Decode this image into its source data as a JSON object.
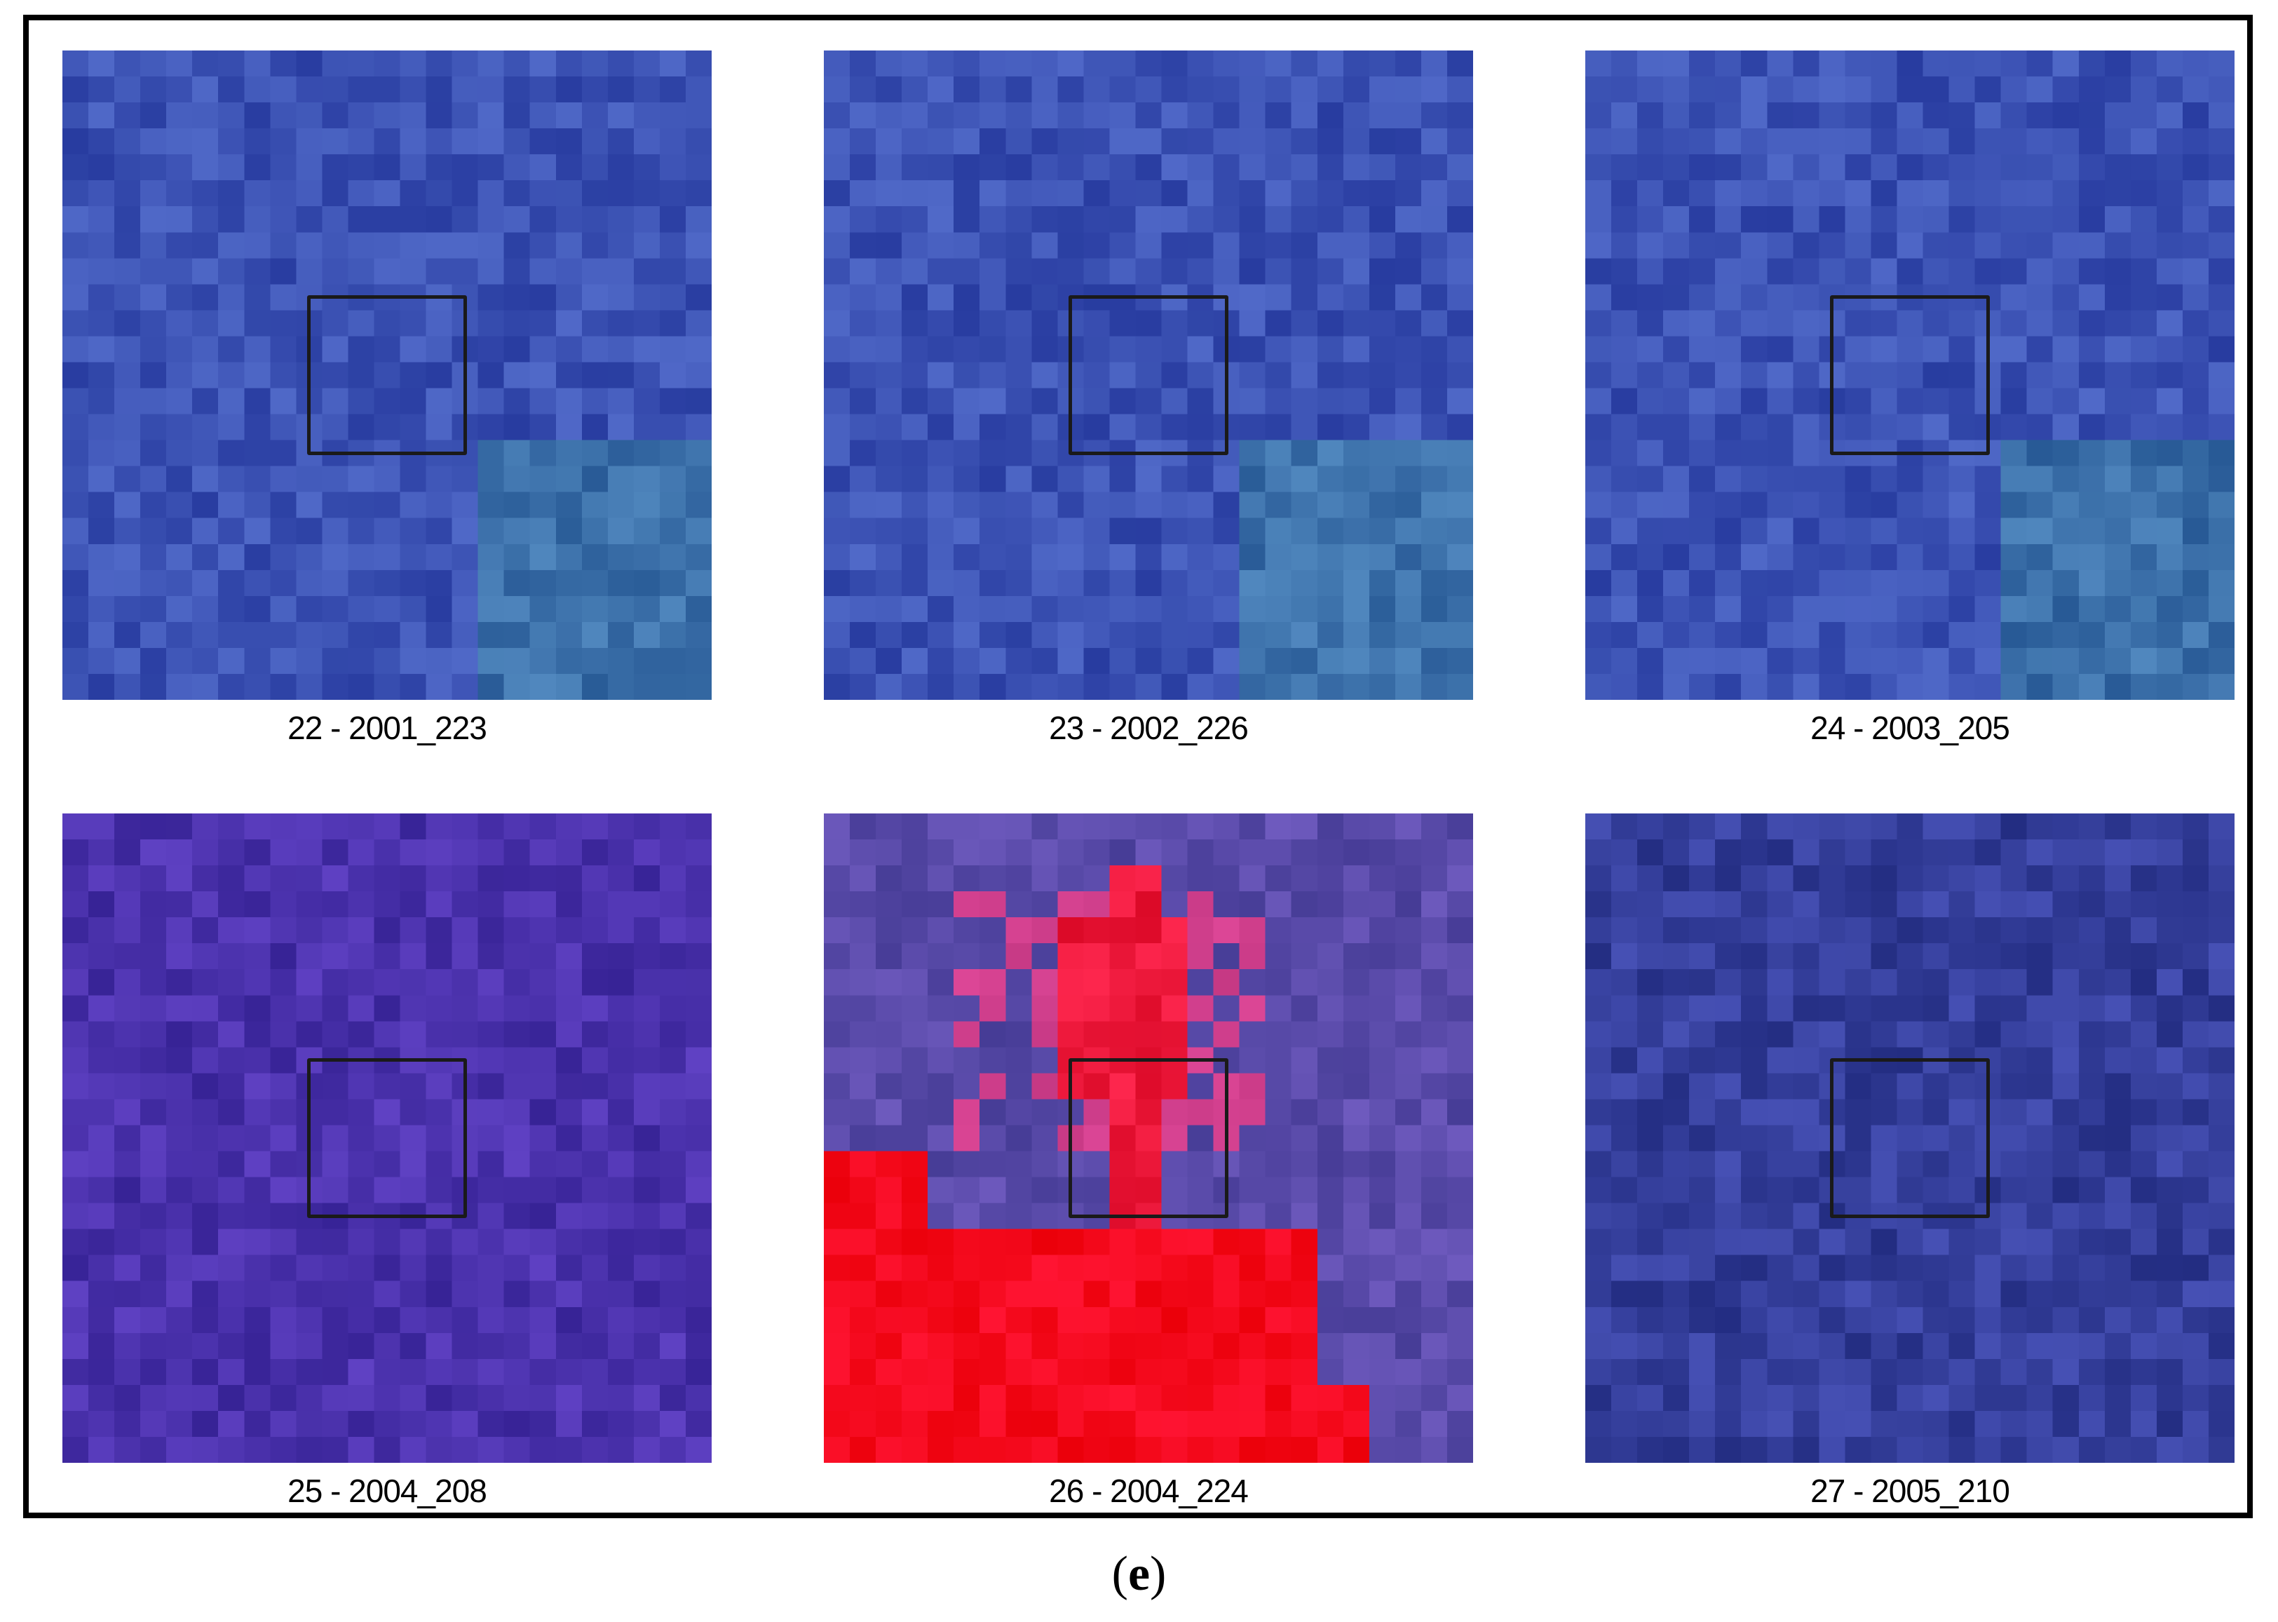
{
  "tiles": [
    {
      "caption": "22 - 2001_223",
      "palette": "blue"
    },
    {
      "caption": "23 - 2002_226",
      "palette": "blue"
    },
    {
      "caption": "24 - 2003_205",
      "palette": "blue"
    },
    {
      "caption": "25 - 2004_208",
      "palette": "violet"
    },
    {
      "caption": "26 - 2004_224",
      "palette": "fire"
    },
    {
      "caption": "27 - 2005_210",
      "palette": "navy"
    }
  ],
  "panel_label": {
    "open": "(",
    "letter": "e",
    "close": ")"
  },
  "colors": {
    "frame": "#000000",
    "roi": "#1a1a1a",
    "fire": "#ff0000"
  }
}
